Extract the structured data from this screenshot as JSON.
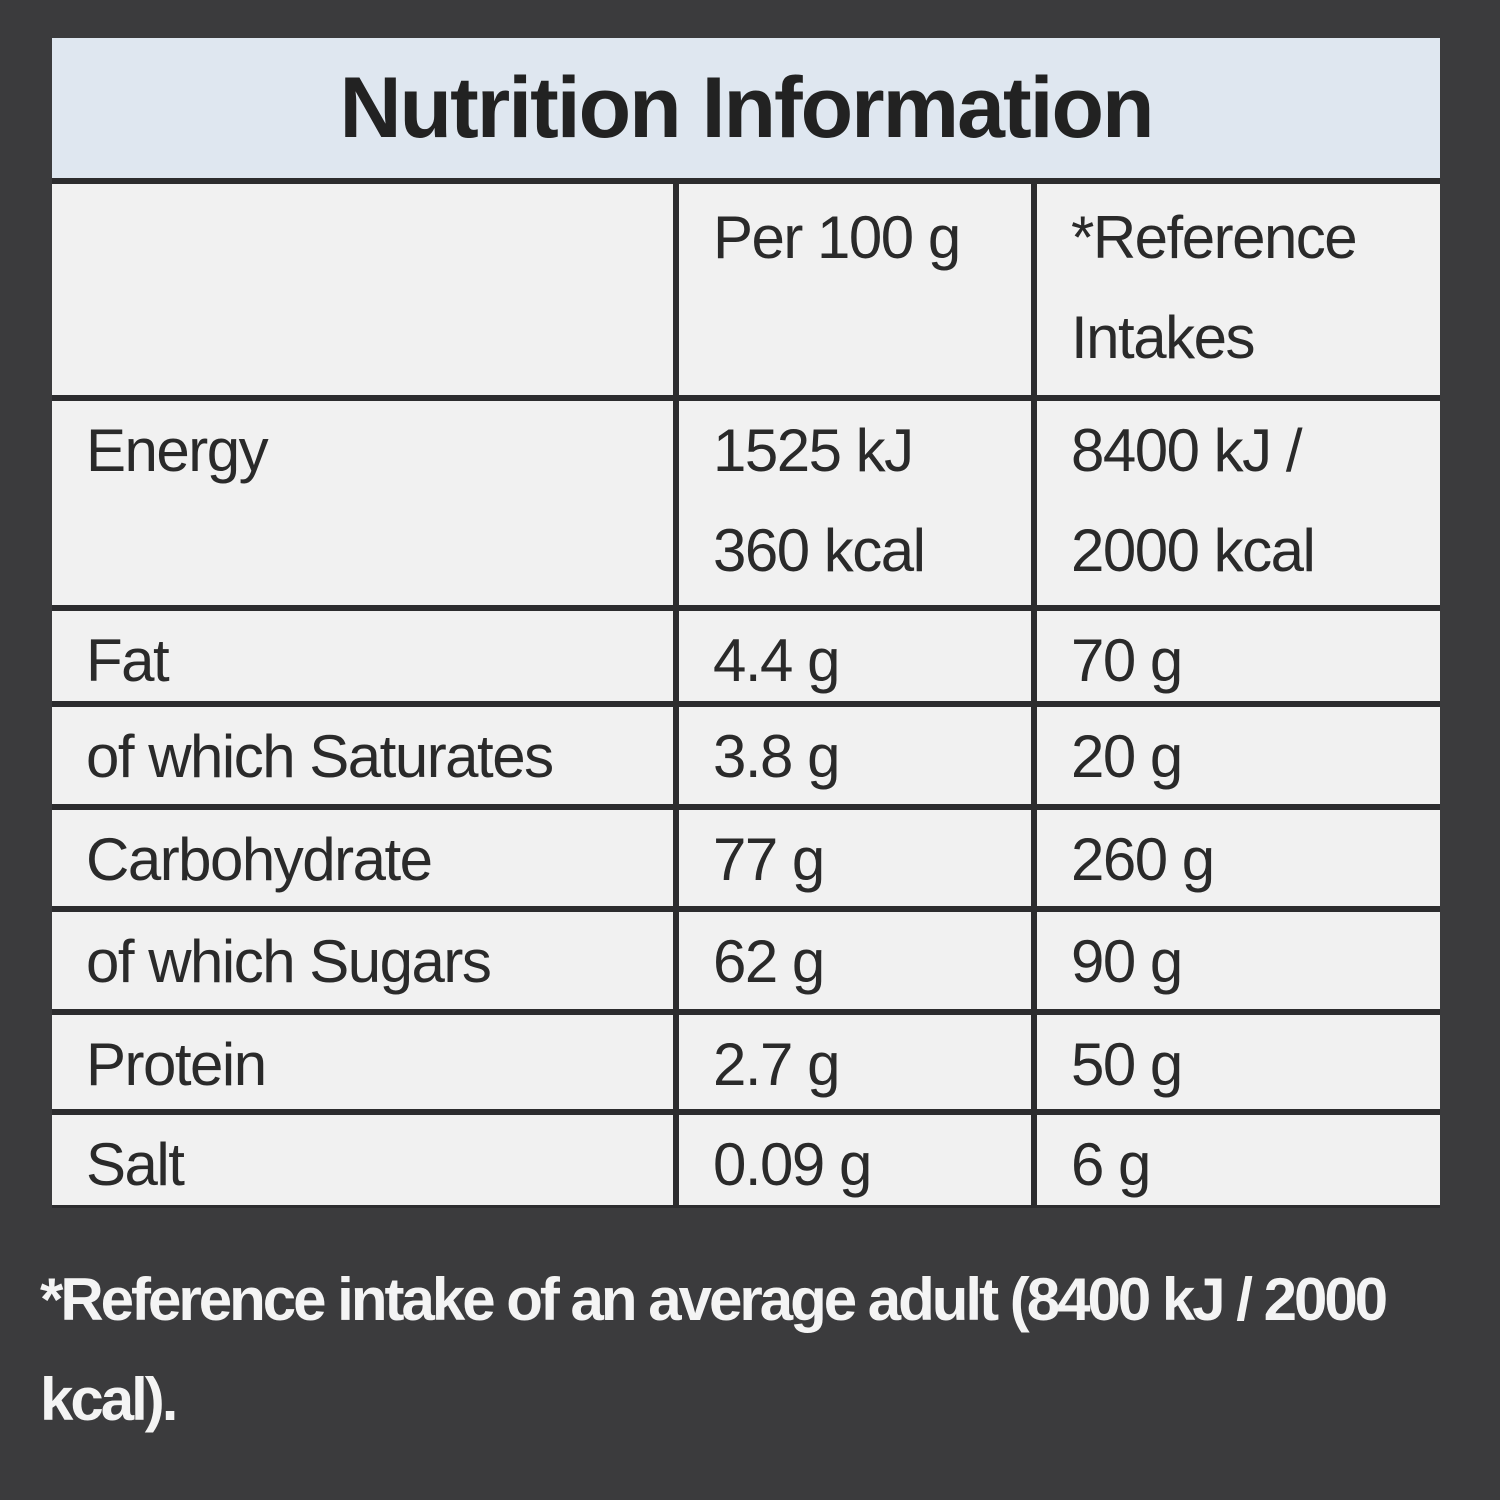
{
  "header": {
    "title": "Nutrition Information"
  },
  "table": {
    "columns": [
      [
        "Per 100 g"
      ],
      [
        "*Reference",
        "Intakes"
      ]
    ],
    "rows": [
      {
        "nutrient": "Energy",
        "per_100g": [
          "1525 kJ",
          "360 kcal"
        ],
        "reference": [
          "8400 kJ /",
          "2000 kcal"
        ]
      },
      {
        "nutrient": "Fat",
        "per_100g": [
          "4.4 g"
        ],
        "reference": [
          "70 g"
        ]
      },
      {
        "nutrient": "of which Saturates",
        "per_100g": [
          "3.8 g"
        ],
        "reference": [
          "20 g"
        ]
      },
      {
        "nutrient": "Carbohydrate",
        "per_100g": [
          "77 g"
        ],
        "reference": [
          "260 g"
        ]
      },
      {
        "nutrient": "of which Sugars",
        "per_100g": [
          "62 g"
        ],
        "reference": [
          "90 g"
        ]
      },
      {
        "nutrient": "Protein",
        "per_100g": [
          "2.7 g"
        ],
        "reference": [
          "50 g"
        ]
      },
      {
        "nutrient": "Salt",
        "per_100g": [
          "0.09 g"
        ],
        "reference": [
          "6 g"
        ]
      }
    ]
  },
  "footnote": "*Reference intake of an average adult (8400 kJ / 2000 kcal)."
}
